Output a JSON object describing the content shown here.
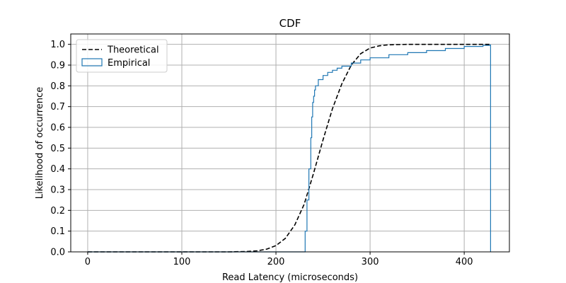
{
  "chart_data": {
    "type": "line",
    "title": "CDF",
    "xlabel": "Read Latency (microseconds)",
    "ylabel": "Likelihood of occurrence",
    "xlim": [
      -18,
      448
    ],
    "ylim": [
      0,
      1.05
    ],
    "xticks": [
      0,
      100,
      200,
      300,
      400
    ],
    "xtick_labels": [
      "0",
      "100",
      "200",
      "300",
      "400"
    ],
    "yticks": [
      0,
      0.1,
      0.2,
      0.3,
      0.4,
      0.5,
      0.6,
      0.7,
      0.8,
      0.9,
      1.0
    ],
    "ytick_labels": [
      "0.0",
      "0.1",
      "0.2",
      "0.3",
      "0.4",
      "0.5",
      "0.6",
      "0.7",
      "0.8",
      "0.9",
      "1.0"
    ],
    "grid": true,
    "legend_position": "top-left",
    "series": [
      {
        "name": "Theoretical",
        "style": "dashed",
        "color": "#000000",
        "x": [
          0,
          150,
          170,
          180,
          190,
          200,
          210,
          220,
          230,
          240,
          250,
          260,
          270,
          280,
          290,
          300,
          310,
          320,
          330,
          340,
          360,
          400,
          428
        ],
        "y": [
          0,
          0,
          0.002,
          0.005,
          0.013,
          0.03,
          0.065,
          0.13,
          0.23,
          0.38,
          0.54,
          0.69,
          0.81,
          0.9,
          0.955,
          0.982,
          0.993,
          0.998,
          0.999,
          1.0,
          1.0,
          1.0,
          1.0
        ]
      },
      {
        "name": "Empirical",
        "style": "step",
        "color": "#1f77b4",
        "x": [
          0,
          230,
          231,
          233,
          235,
          237,
          238,
          239,
          240,
          241,
          242,
          245,
          250,
          255,
          260,
          265,
          270,
          280,
          290,
          300,
          320,
          340,
          360,
          380,
          400,
          420,
          428,
          428
        ],
        "y": [
          0,
          0,
          0.1,
          0.25,
          0.4,
          0.55,
          0.65,
          0.72,
          0.75,
          0.78,
          0.8,
          0.83,
          0.85,
          0.865,
          0.875,
          0.885,
          0.895,
          0.91,
          0.925,
          0.935,
          0.95,
          0.96,
          0.97,
          0.98,
          0.99,
          0.995,
          1.0,
          0
        ]
      }
    ]
  }
}
